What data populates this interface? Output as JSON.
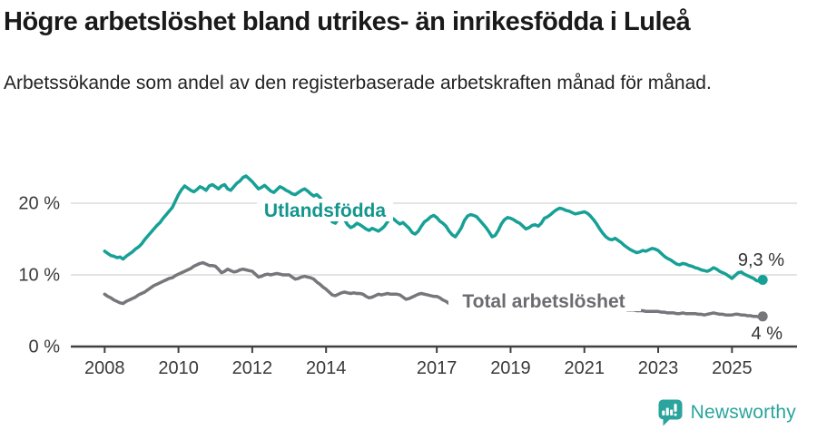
{
  "header": {
    "title": "Högre arbetslöshet bland utrikes- än inrikesfödda i Luleå",
    "subtitle": "Arbetssökande som andel av den registerbaserade arbetskraften månad för månad."
  },
  "chart_data": {
    "type": "line",
    "unit": "%",
    "x_start": "2008-01",
    "x_end": "2025-11",
    "x_interval": "monthly",
    "ylim": [
      0,
      26
    ],
    "grid": "horizontal",
    "yticks": [
      {
        "value": 0,
        "label": "0 %"
      },
      {
        "value": 10,
        "label": "10 %"
      },
      {
        "value": 20,
        "label": "20 %"
      }
    ],
    "xticks": [
      {
        "year": 2008,
        "label": "2008"
      },
      {
        "year": 2010,
        "label": "2010"
      },
      {
        "year": 2012,
        "label": "2012"
      },
      {
        "year": 2014,
        "label": "2014"
      },
      {
        "year": 2017,
        "label": "2017"
      },
      {
        "year": 2019,
        "label": "2019"
      },
      {
        "year": 2021,
        "label": "2021"
      },
      {
        "year": 2023,
        "label": "2023"
      },
      {
        "year": 2025,
        "label": "2025"
      }
    ],
    "series": [
      {
        "name": "Utlandsfödda",
        "color": "#17a096",
        "label_color": "#13968d",
        "end_value": 9.3,
        "end_label": "9,3 %",
        "values": [
          13.3,
          13.0,
          12.7,
          12.6,
          12.4,
          12.5,
          12.2,
          12.6,
          12.9,
          13.2,
          13.6,
          13.9,
          14.3,
          14.9,
          15.4,
          15.9,
          16.4,
          16.9,
          17.3,
          17.9,
          18.4,
          18.9,
          19.4,
          20.3,
          21.2,
          21.9,
          22.4,
          22.1,
          21.8,
          21.6,
          21.9,
          22.3,
          22.1,
          21.8,
          22.4,
          22.6,
          22.3,
          22.0,
          22.4,
          22.6,
          22.0,
          21.8,
          22.3,
          22.8,
          23.1,
          23.6,
          23.8,
          23.4,
          23.0,
          22.5,
          22.0,
          22.2,
          22.5,
          22.1,
          21.7,
          21.5,
          21.9,
          22.3,
          22.1,
          21.8,
          21.6,
          21.3,
          21.2,
          21.5,
          21.8,
          22.0,
          21.7,
          21.3,
          21.0,
          21.2,
          20.8,
          20.2,
          19.3,
          18.1,
          17.4,
          17.2,
          17.8,
          18.3,
          17.7,
          17.0,
          16.6,
          16.8,
          17.2,
          17.0,
          16.7,
          16.4,
          16.2,
          16.5,
          16.3,
          16.1,
          16.4,
          16.8,
          17.4,
          18.0,
          17.8,
          17.4,
          17.1,
          17.3,
          16.9,
          16.5,
          15.9,
          15.7,
          16.1,
          16.8,
          17.4,
          17.7,
          18.1,
          18.3,
          18.0,
          17.5,
          17.2,
          16.8,
          16.1,
          15.6,
          15.3,
          15.9,
          16.6,
          17.6,
          18.2,
          18.4,
          18.3,
          18.1,
          17.6,
          17.1,
          16.6,
          16.0,
          15.3,
          15.5,
          16.2,
          17.1,
          17.7,
          18.0,
          17.9,
          17.7,
          17.4,
          17.2,
          16.8,
          16.4,
          16.6,
          16.9,
          17.0,
          16.8,
          17.2,
          17.9,
          18.1,
          18.4,
          18.8,
          19.1,
          19.3,
          19.2,
          19.0,
          18.9,
          18.7,
          18.5,
          18.6,
          18.7,
          18.8,
          18.6,
          18.2,
          17.7,
          17.1,
          16.4,
          15.8,
          15.3,
          15.0,
          14.9,
          15.1,
          14.8,
          14.5,
          14.1,
          13.8,
          13.5,
          13.3,
          13.1,
          13.2,
          13.4,
          13.3,
          13.5,
          13.7,
          13.6,
          13.4,
          13.0,
          12.6,
          12.3,
          12.1,
          11.8,
          11.5,
          11.4,
          11.6,
          11.5,
          11.3,
          11.2,
          11.0,
          10.9,
          10.7,
          10.6,
          10.5,
          10.7,
          11.0,
          10.8,
          10.5,
          10.3,
          10.1,
          9.8,
          9.5,
          9.9,
          10.3,
          10.4,
          10.1,
          9.9,
          9.7,
          9.5,
          9.2,
          9.1,
          9.3
        ]
      },
      {
        "name": "Total arbetslöshet",
        "color": "#77777b",
        "label_color": "#6b6b70",
        "end_value": 4.2,
        "end_label": "4 %",
        "values": [
          7.3,
          7.0,
          6.8,
          6.5,
          6.3,
          6.1,
          6.0,
          6.3,
          6.5,
          6.7,
          6.9,
          7.2,
          7.4,
          7.6,
          7.9,
          8.2,
          8.5,
          8.7,
          8.9,
          9.1,
          9.3,
          9.5,
          9.6,
          9.9,
          10.1,
          10.3,
          10.5,
          10.7,
          10.9,
          11.2,
          11.4,
          11.6,
          11.7,
          11.5,
          11.3,
          11.3,
          11.2,
          10.8,
          10.3,
          10.5,
          10.8,
          10.6,
          10.4,
          10.5,
          10.7,
          10.8,
          10.7,
          10.6,
          10.5,
          10.1,
          9.7,
          9.8,
          10.0,
          10.1,
          10.0,
          10.1,
          10.2,
          10.1,
          10.0,
          10.0,
          10.0,
          9.7,
          9.4,
          9.5,
          9.7,
          9.8,
          9.7,
          9.6,
          9.4,
          9.0,
          8.7,
          8.3,
          8.0,
          7.6,
          7.2,
          7.1,
          7.3,
          7.5,
          7.6,
          7.5,
          7.4,
          7.5,
          7.4,
          7.4,
          7.3,
          7.0,
          6.8,
          6.9,
          7.1,
          7.3,
          7.2,
          7.3,
          7.4,
          7.3,
          7.3,
          7.3,
          7.2,
          6.9,
          6.6,
          6.7,
          6.9,
          7.1,
          7.3,
          7.4,
          7.3,
          7.2,
          7.1,
          7.0,
          7.0,
          6.8,
          6.5,
          6.3,
          6.0,
          5.8,
          5.7,
          5.8,
          6.0,
          6.1,
          6.0,
          5.9,
          5.9,
          5.8,
          5.7,
          5.6,
          5.5,
          5.4,
          5.4,
          5.5,
          5.6,
          5.6,
          5.5,
          5.5,
          5.5,
          5.4,
          5.3,
          5.3,
          5.4,
          5.5,
          5.6,
          5.7,
          5.8,
          5.8,
          5.9,
          6.0,
          6.2,
          6.4,
          6.7,
          7.0,
          7.2,
          7.3,
          7.2,
          7.1,
          7.0,
          6.9,
          6.8,
          6.7,
          6.6,
          6.4,
          6.2,
          6.0,
          5.9,
          5.8,
          5.7,
          5.6,
          5.5,
          5.4,
          5.3,
          5.3,
          5.2,
          5.2,
          5.1,
          5.1,
          5.1,
          5.0,
          5.0,
          5.0,
          4.9,
          4.9,
          4.9,
          4.9,
          4.9,
          4.8,
          4.8,
          4.7,
          4.7,
          4.7,
          4.6,
          4.6,
          4.7,
          4.6,
          4.6,
          4.6,
          4.6,
          4.5,
          4.5,
          4.4,
          4.5,
          4.6,
          4.7,
          4.6,
          4.5,
          4.5,
          4.4,
          4.4,
          4.4,
          4.5,
          4.5,
          4.4,
          4.4,
          4.3,
          4.3,
          4.2,
          4.2,
          4.1,
          4.2
        ]
      }
    ]
  },
  "branding": {
    "name": "Newsworthy",
    "color": "#2aa49d",
    "icon": "newsworthy-bar-chart-bubble"
  }
}
